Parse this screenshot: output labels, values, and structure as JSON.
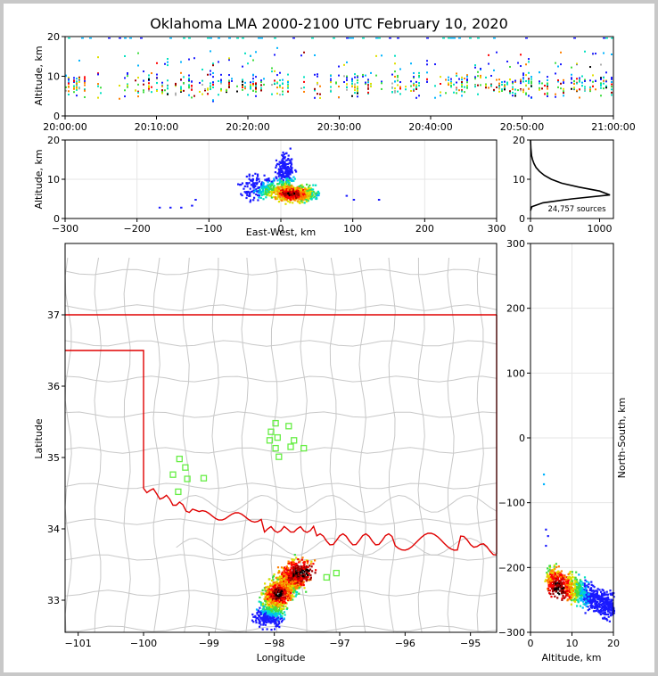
{
  "title": "Oklahoma LMA 2000-2100 UTC February 10, 2020",
  "colors": {
    "state_border": "#e00000",
    "county_lines": "#c8c8c8",
    "stations": "#66ee44",
    "density_colormap": [
      "#1a1aff",
      "#00b4ff",
      "#00e0c0",
      "#40dd40",
      "#e0e000",
      "#ff8000",
      "#ff0000",
      "#a00000",
      "#000000",
      "#b0b0b0"
    ]
  },
  "chart_data": [
    {
      "panel": "time-altitude",
      "type": "heatmap",
      "title": "Oklahoma LMA 2000-2100 UTC February 10, 2020",
      "xlabel": "",
      "ylabel": "Altitude, km",
      "xlim": [
        "20:00:00",
        "21:00:00"
      ],
      "ylim": [
        0,
        20
      ],
      "x_ticks": [
        "20:00:00",
        "20:10:00",
        "20:20:00",
        "20:30:00",
        "20:40:00",
        "20:50:00",
        "21:00:00"
      ],
      "y_ticks": [
        "0",
        "10",
        "20"
      ],
      "core_altitude_km": [
        5,
        11
      ],
      "max_altitude_km": 20
    },
    {
      "panel": "east-west-altitude",
      "type": "heatmap",
      "xlabel": "East-West, km",
      "ylabel": "Altitude, km",
      "xlim": [
        -300,
        300
      ],
      "ylim": [
        0,
        20
      ],
      "x_ticks": [
        "-300",
        "-200",
        "-100",
        "0",
        "100",
        "200",
        "300"
      ],
      "y_ticks": [
        "0",
        "10",
        "20"
      ],
      "grid": true,
      "core_x_km": [
        -10,
        60
      ],
      "core_altitude_km": [
        5,
        10
      ]
    },
    {
      "panel": "altitude-histogram",
      "type": "line",
      "xlim": [
        0,
        1200
      ],
      "ylim": [
        0,
        20
      ],
      "x_ticks": [
        "0",
        "1000"
      ],
      "y_ticks": [
        "0",
        "10",
        "20"
      ],
      "annotation": "24,757 sources",
      "x": [
        0,
        20,
        180,
        600,
        1150,
        1000,
        700,
        450,
        300,
        200,
        130,
        80,
        50,
        30,
        15,
        5,
        0
      ],
      "y": [
        2,
        3,
        4,
        5,
        6,
        7,
        8,
        9,
        10,
        11,
        12,
        13,
        14,
        15,
        16,
        18,
        20
      ]
    },
    {
      "panel": "plan-view",
      "type": "scatter",
      "xlabel": "Longitude",
      "ylabel": "Latitude",
      "xlim": [
        -101.2,
        -94.6
      ],
      "ylim": [
        32.55,
        38
      ],
      "x_ticks": [
        "-101",
        "-100",
        "-99",
        "-98",
        "-97",
        "-96",
        "-95"
      ],
      "y_ticks": [
        "33",
        "34",
        "35",
        "36",
        "37"
      ],
      "stations": [
        {
          "lon": -97.98,
          "lat": 35.48
        },
        {
          "lon": -97.78,
          "lat": 35.44
        },
        {
          "lon": -98.05,
          "lat": 35.36
        },
        {
          "lon": -97.95,
          "lat": 35.28
        },
        {
          "lon": -98.07,
          "lat": 35.24
        },
        {
          "lon": -97.7,
          "lat": 35.24
        },
        {
          "lon": -97.75,
          "lat": 35.15
        },
        {
          "lon": -97.55,
          "lat": 35.13
        },
        {
          "lon": -97.98,
          "lat": 35.13
        },
        {
          "lon": -97.93,
          "lat": 35.01
        },
        {
          "lon": -99.45,
          "lat": 34.98
        },
        {
          "lon": -99.36,
          "lat": 34.86
        },
        {
          "lon": -99.55,
          "lat": 34.76
        },
        {
          "lon": -99.33,
          "lat": 34.7
        },
        {
          "lon": -99.08,
          "lat": 34.71
        },
        {
          "lon": -99.47,
          "lat": 34.52
        },
        {
          "lon": -97.05,
          "lat": 33.38
        },
        {
          "lon": -97.2,
          "lat": 33.32
        }
      ],
      "storm_core": {
        "lon": -97.95,
        "lat": 33.1
      }
    },
    {
      "panel": "north-south-altitude",
      "type": "heatmap",
      "xlabel": "Altitude, km",
      "ylabel": "North-South, km",
      "xlim": [
        0,
        20
      ],
      "ylim": [
        -300,
        300
      ],
      "x_ticks": [
        "0",
        "10",
        "20"
      ],
      "y_ticks": [
        "-300",
        "-200",
        "-100",
        "0",
        "100",
        "200",
        "300"
      ],
      "grid": true,
      "core_ns_km": [
        -275,
        -195
      ],
      "core_altitude_km": [
        4,
        10
      ]
    }
  ]
}
